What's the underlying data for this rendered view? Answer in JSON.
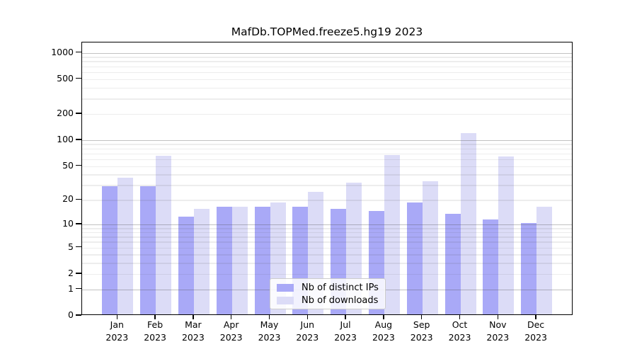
{
  "title": "MafDb.TOPMed.freeze5.hg19 2023",
  "chart_data": {
    "type": "bar",
    "title": "MafDb.TOPMed.freeze5.hg19 2023",
    "scale": "log1p",
    "categories": [
      "Jan",
      "Feb",
      "Mar",
      "Apr",
      "May",
      "Jun",
      "Jul",
      "Aug",
      "Sep",
      "Oct",
      "Nov",
      "Dec"
    ],
    "year": "2023",
    "series": [
      {
        "name": "Nb of distinct IPs",
        "color": "#a9a9f7",
        "values": [
          28,
          28,
          12,
          16,
          16,
          16,
          15,
          14,
          18,
          13,
          11,
          10
        ]
      },
      {
        "name": "Nb of downloads",
        "color": "#dcdcf7",
        "values": [
          35,
          64,
          15,
          16,
          18,
          24,
          31,
          65,
          32,
          115,
          62,
          16
        ]
      }
    ],
    "yticks": [
      0,
      1,
      2,
      5,
      10,
      20,
      50,
      100,
      200,
      500,
      1000
    ],
    "ylim": [
      0,
      1310
    ],
    "grid": true,
    "legend_position": "bottom-center"
  },
  "colors": {
    "axis": "#000000",
    "grid_major": "#c6c6c6",
    "grid_minor": "#e9e9e9",
    "legend_border": "#cccccc",
    "background": "#ffffff"
  }
}
